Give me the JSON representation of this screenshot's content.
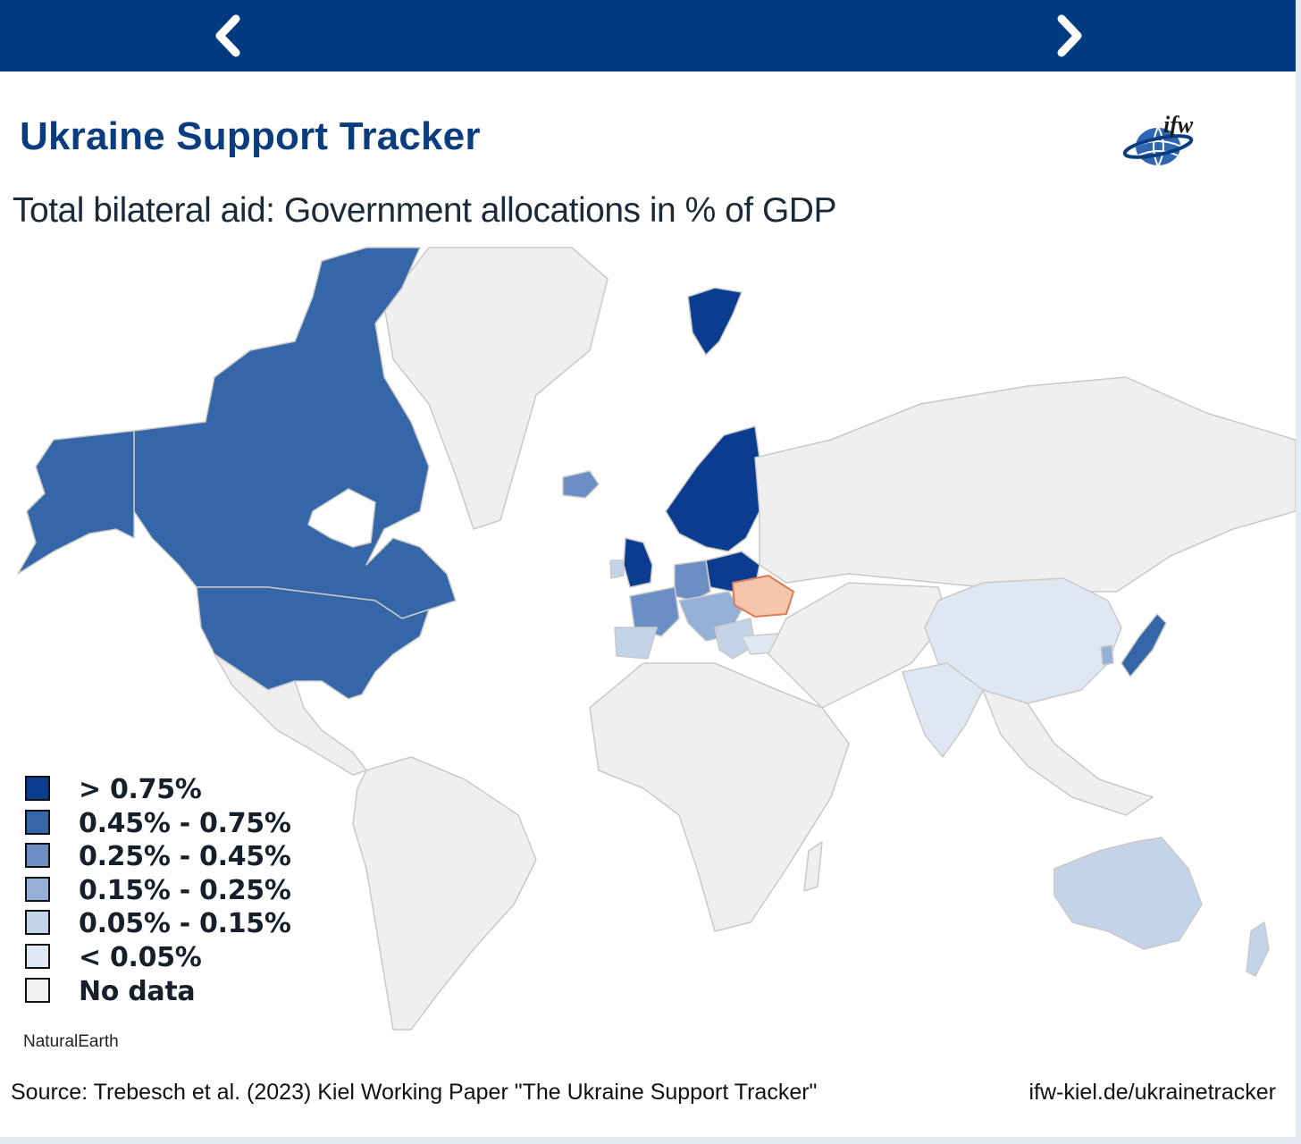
{
  "header": {
    "prev_icon": "chevron-left-icon",
    "next_icon": "chevron-right-icon",
    "bar_color": "#003b80"
  },
  "title": "Ukraine Support Tracker",
  "logo_text": "ifw",
  "subtitle": "Total bilateral aid: Government allocations in % of GDP",
  "legend": [
    {
      "label": "> 0.75%",
      "color": "#0a3d8f"
    },
    {
      "label": "0.45% - 0.75%",
      "color": "#3567a8"
    },
    {
      "label": "0.25% - 0.45%",
      "color": "#6b8fc4"
    },
    {
      "label": "0.15% - 0.25%",
      "color": "#95b0d6"
    },
    {
      "label": "0.05% - 0.15%",
      "color": "#c3d3e8"
    },
    {
      "label": "< 0.05%",
      "color": "#dfe7f2"
    },
    {
      "label": "No data",
      "color": "#f0f0f0"
    }
  ],
  "map_colors": {
    "ukraine": "#f3c6ad",
    "ukraine_border": "#e07a55",
    "no_data": "#efefef",
    "border": "#c9c9c9"
  },
  "credit": "NaturalEarth",
  "footer": {
    "source": "Source: Trebesch et al. (2023) Kiel Working Paper \"The Ukraine Support Tracker\"",
    "url": "ifw-kiel.de/ukrainetracker"
  }
}
